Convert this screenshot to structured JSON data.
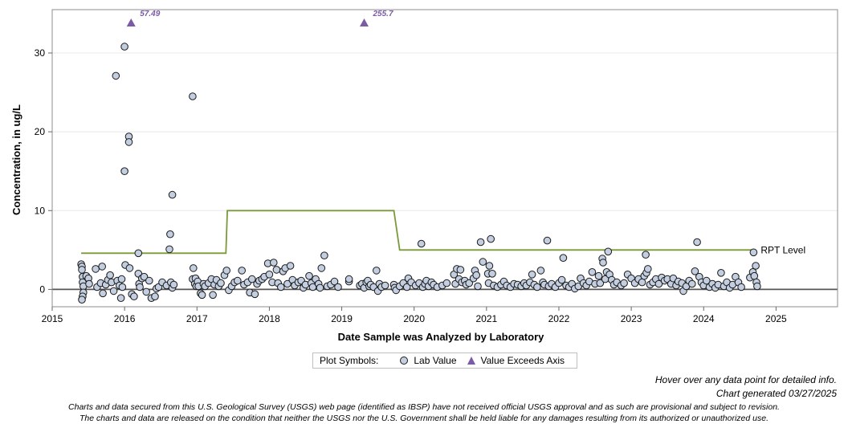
{
  "legend": {
    "title": "Plot Symbols:",
    "lab_value": "Lab Value",
    "exceeds": "Value Exceeds Axis"
  },
  "notes": {
    "hover": "Hover over any data point for detailed info.",
    "generated": "Chart generated 03/27/2025"
  },
  "disclaimer": {
    "line1": "Charts and data secured from this U.S. Geological Survey (USGS) web page (identified as IBSP) have not received official USGS approval and as such are provisional and subject to revision.",
    "line2": "The charts and data are released on the condition that neither the USGS nor the U.S. Government shall be held liable for any damages resulting from its authorized or unauthorized use."
  },
  "colors": {
    "marker_fill": "#c3cfe0",
    "marker_stroke": "#1a1a1a",
    "triangle": "#7b5aa6",
    "rpt_line": "#7a9a3a",
    "zero_line": "#555555",
    "grid": "#e8e8e8"
  },
  "chart_data": {
    "type": "scatter",
    "xlabel": "Date Sample was Analyzed by Laboratory",
    "ylabel": "Concentration, in ug/L",
    "xlim": [
      2015.0,
      2025.85
    ],
    "ylim": [
      -2.2,
      35.5
    ],
    "xticks": [
      "2015",
      "2016",
      "2017",
      "2018",
      "2019",
      "2020",
      "2021",
      "2022",
      "2023",
      "2024",
      "2025"
    ],
    "yticks": [
      "0",
      "10",
      "20",
      "30"
    ],
    "grid": "horizontal",
    "legend_position": "bottom",
    "rpt_label": "RPT Level",
    "rpt_level": [
      [
        2015.4,
        4.6
      ],
      [
        2017.4,
        4.6
      ],
      [
        2017.42,
        10.0
      ],
      [
        2019.72,
        10.0
      ],
      [
        2019.8,
        5.0
      ],
      [
        2024.7,
        5.0
      ]
    ],
    "exceeds_axis": [
      {
        "x": 2016.09,
        "value": "57.49"
      },
      {
        "x": 2019.31,
        "value": "255.7"
      }
    ],
    "lab_values": [
      [
        2015.4,
        3.2
      ],
      [
        2015.41,
        2.9
      ],
      [
        2015.41,
        2.5
      ],
      [
        2015.42,
        1.6
      ],
      [
        2015.42,
        0.9
      ],
      [
        2015.43,
        0.4
      ],
      [
        2015.43,
        -0.4
      ],
      [
        2015.42,
        -0.9
      ],
      [
        2015.41,
        -1.3
      ],
      [
        2015.47,
        1.7
      ],
      [
        2015.5,
        1.4
      ],
      [
        2015.51,
        0.7
      ],
      [
        2015.6,
        2.6
      ],
      [
        2015.62,
        0.3
      ],
      [
        2015.67,
        0.8
      ],
      [
        2015.69,
        2.9
      ],
      [
        2015.7,
        -0.5
      ],
      [
        2015.74,
        0.6
      ],
      [
        2015.77,
        1.2
      ],
      [
        2015.8,
        1.8
      ],
      [
        2015.82,
        0.9
      ],
      [
        2015.85,
        -0.2
      ],
      [
        2015.88,
        27.1
      ],
      [
        2015.9,
        1.1
      ],
      [
        2015.93,
        0.5
      ],
      [
        2015.96,
        1.3
      ],
      [
        2015.97,
        0.3
      ],
      [
        2015.95,
        -1.1
      ],
      [
        2016.0,
        30.8
      ],
      [
        2016.0,
        15.0
      ],
      [
        2016.01,
        3.1
      ],
      [
        2016.06,
        19.4
      ],
      [
        2016.06,
        18.7
      ],
      [
        2016.07,
        2.7
      ],
      [
        2016.1,
        -0.6
      ],
      [
        2016.13,
        -0.9
      ],
      [
        2016.19,
        4.6
      ],
      [
        2016.19,
        2.0
      ],
      [
        2016.2,
        0.7
      ],
      [
        2016.21,
        0.3
      ],
      [
        2016.24,
        1.4
      ],
      [
        2016.27,
        1.6
      ],
      [
        2016.3,
        -0.3
      ],
      [
        2016.34,
        1.1
      ],
      [
        2016.37,
        -1.1
      ],
      [
        2016.42,
        -0.9
      ],
      [
        2016.44,
        0.1
      ],
      [
        2016.47,
        0.3
      ],
      [
        2016.52,
        0.9
      ],
      [
        2016.58,
        0.5
      ],
      [
        2016.62,
        5.1
      ],
      [
        2016.63,
        7.0
      ],
      [
        2016.64,
        0.9
      ],
      [
        2016.66,
        12.0
      ],
      [
        2016.66,
        0.2
      ],
      [
        2016.68,
        0.6
      ],
      [
        2016.94,
        24.5
      ],
      [
        2016.94,
        1.3
      ],
      [
        2016.95,
        2.7
      ],
      [
        2016.97,
        0.7
      ],
      [
        2016.98,
        1.4
      ],
      [
        2016.99,
        0.4
      ],
      [
        2017.01,
        1.0
      ],
      [
        2017.02,
        0.4
      ],
      [
        2017.05,
        -0.5
      ],
      [
        2017.07,
        -0.7
      ],
      [
        2017.09,
        0.7
      ],
      [
        2017.11,
        0.4
      ],
      [
        2017.16,
        0.8
      ],
      [
        2017.2,
        1.3
      ],
      [
        2017.22,
        -0.7
      ],
      [
        2017.24,
        0.6
      ],
      [
        2017.27,
        1.2
      ],
      [
        2017.3,
        0.4
      ],
      [
        2017.33,
        0.8
      ],
      [
        2017.38,
        1.8
      ],
      [
        2017.41,
        2.4
      ],
      [
        2017.44,
        -0.1
      ],
      [
        2017.48,
        0.4
      ],
      [
        2017.52,
        0.9
      ],
      [
        2017.56,
        1.1
      ],
      [
        2017.62,
        2.4
      ],
      [
        2017.65,
        0.6
      ],
      [
        2017.7,
        0.9
      ],
      [
        2017.73,
        -0.4
      ],
      [
        2017.76,
        1.3
      ],
      [
        2017.8,
        -0.6
      ],
      [
        2017.83,
        0.7
      ],
      [
        2017.86,
        1.1
      ],
      [
        2017.9,
        1.3
      ],
      [
        2017.93,
        1.6
      ],
      [
        2017.98,
        3.3
      ],
      [
        2018.0,
        1.9
      ],
      [
        2018.04,
        0.9
      ],
      [
        2018.06,
        3.4
      ],
      [
        2018.1,
        2.5
      ],
      [
        2018.12,
        0.8
      ],
      [
        2018.16,
        0.3
      ],
      [
        2018.19,
        2.3
      ],
      [
        2018.22,
        2.7
      ],
      [
        2018.25,
        0.7
      ],
      [
        2018.29,
        3.0
      ],
      [
        2018.32,
        1.2
      ],
      [
        2018.35,
        0.5
      ],
      [
        2018.4,
        0.9
      ],
      [
        2018.44,
        1.1
      ],
      [
        2018.47,
        0.2
      ],
      [
        2018.5,
        0.6
      ],
      [
        2018.55,
        1.7
      ],
      [
        2018.58,
        0.8
      ],
      [
        2018.6,
        0.3
      ],
      [
        2018.64,
        1.3
      ],
      [
        2018.68,
        0.7
      ],
      [
        2018.7,
        0.2
      ],
      [
        2018.72,
        2.7
      ],
      [
        2018.76,
        4.3
      ],
      [
        2018.8,
        0.4
      ],
      [
        2018.85,
        0.6
      ],
      [
        2018.9,
        1.0
      ],
      [
        2018.95,
        0.3
      ],
      [
        2019.1,
        1.0
      ],
      [
        2019.1,
        1.3
      ],
      [
        2019.25,
        0.5
      ],
      [
        2019.28,
        0.7
      ],
      [
        2019.31,
        0.2
      ],
      [
        2019.34,
        0.9
      ],
      [
        2019.36,
        1.1
      ],
      [
        2019.38,
        0.4
      ],
      [
        2019.4,
        0.6
      ],
      [
        2019.44,
        0.3
      ],
      [
        2019.48,
        2.4
      ],
      [
        2019.5,
        -0.2
      ],
      [
        2019.52,
        0.7
      ],
      [
        2019.55,
        0.3
      ],
      [
        2019.6,
        0.5
      ],
      [
        2019.72,
        0.6
      ],
      [
        2019.73,
        0.2
      ],
      [
        2019.75,
        -0.1
      ],
      [
        2019.8,
        0.4
      ],
      [
        2019.85,
        0.8
      ],
      [
        2019.9,
        0.3
      ],
      [
        2019.92,
        1.4
      ],
      [
        2019.96,
        0.9
      ],
      [
        2020.02,
        0.5
      ],
      [
        2020.07,
        0.8
      ],
      [
        2020.1,
        5.8
      ],
      [
        2020.12,
        0.3
      ],
      [
        2020.15,
        0.7
      ],
      [
        2020.17,
        1.1
      ],
      [
        2020.2,
        0.4
      ],
      [
        2020.24,
        0.9
      ],
      [
        2020.27,
        0.6
      ],
      [
        2020.32,
        0.3
      ],
      [
        2020.39,
        0.5
      ],
      [
        2020.45,
        0.8
      ],
      [
        2020.55,
        1.9
      ],
      [
        2020.57,
        0.7
      ],
      [
        2020.59,
        2.6
      ],
      [
        2020.62,
        1.3
      ],
      [
        2020.64,
        2.5
      ],
      [
        2020.66,
        0.9
      ],
      [
        2020.7,
        1.1
      ],
      [
        2020.72,
        0.6
      ],
      [
        2020.76,
        0.8
      ],
      [
        2020.82,
        1.4
      ],
      [
        2020.84,
        2.4
      ],
      [
        2020.86,
        1.8
      ],
      [
        2020.88,
        0.4
      ],
      [
        2020.92,
        6.0
      ],
      [
        2020.95,
        3.5
      ],
      [
        2021.02,
        2.0
      ],
      [
        2021.03,
        0.8
      ],
      [
        2021.04,
        3.0
      ],
      [
        2021.06,
        6.4
      ],
      [
        2021.08,
        2.0
      ],
      [
        2021.1,
        0.5
      ],
      [
        2021.15,
        0.3
      ],
      [
        2021.2,
        0.6
      ],
      [
        2021.24,
        1.0
      ],
      [
        2021.28,
        0.5
      ],
      [
        2021.33,
        0.3
      ],
      [
        2021.38,
        0.7
      ],
      [
        2021.43,
        0.6
      ],
      [
        2021.48,
        0.4
      ],
      [
        2021.52,
        0.8
      ],
      [
        2021.55,
        0.5
      ],
      [
        2021.6,
        0.9
      ],
      [
        2021.63,
        1.9
      ],
      [
        2021.66,
        0.6
      ],
      [
        2021.7,
        0.3
      ],
      [
        2021.75,
        2.4
      ],
      [
        2021.78,
        0.9
      ],
      [
        2021.8,
        0.6
      ],
      [
        2021.84,
        6.2
      ],
      [
        2021.86,
        0.4
      ],
      [
        2021.9,
        0.7
      ],
      [
        2021.95,
        0.3
      ],
      [
        2022.0,
        0.8
      ],
      [
        2022.04,
        1.2
      ],
      [
        2022.06,
        4.0
      ],
      [
        2022.1,
        0.5
      ],
      [
        2022.14,
        0.3
      ],
      [
        2022.18,
        0.7
      ],
      [
        2022.22,
        0.1
      ],
      [
        2022.27,
        0.4
      ],
      [
        2022.3,
        1.4
      ],
      [
        2022.34,
        0.8
      ],
      [
        2022.38,
        0.5
      ],
      [
        2022.42,
        1.0
      ],
      [
        2022.46,
        2.2
      ],
      [
        2022.5,
        0.7
      ],
      [
        2022.55,
        1.7
      ],
      [
        2022.57,
        0.8
      ],
      [
        2022.6,
        3.9
      ],
      [
        2022.61,
        3.4
      ],
      [
        2022.64,
        1.3
      ],
      [
        2022.66,
        2.2
      ],
      [
        2022.68,
        4.8
      ],
      [
        2022.7,
        1.9
      ],
      [
        2022.73,
        1.2
      ],
      [
        2022.76,
        0.6
      ],
      [
        2022.8,
        0.9
      ],
      [
        2022.86,
        0.5
      ],
      [
        2022.9,
        0.8
      ],
      [
        2022.95,
        1.9
      ],
      [
        2023.0,
        1.4
      ],
      [
        2023.05,
        0.8
      ],
      [
        2023.1,
        1.3
      ],
      [
        2023.15,
        0.9
      ],
      [
        2023.18,
        1.7
      ],
      [
        2023.2,
        4.4
      ],
      [
        2023.21,
        2.1
      ],
      [
        2023.23,
        2.6
      ],
      [
        2023.26,
        0.6
      ],
      [
        2023.3,
        0.9
      ],
      [
        2023.34,
        1.3
      ],
      [
        2023.38,
        0.7
      ],
      [
        2023.42,
        1.5
      ],
      [
        2023.46,
        1.1
      ],
      [
        2023.5,
        1.3
      ],
      [
        2023.55,
        0.7
      ],
      [
        2023.58,
        1.4
      ],
      [
        2023.62,
        0.5
      ],
      [
        2023.65,
        1.0
      ],
      [
        2023.7,
        0.8
      ],
      [
        2023.72,
        -0.2
      ],
      [
        2023.76,
        0.4
      ],
      [
        2023.8,
        1.1
      ],
      [
        2023.84,
        0.7
      ],
      [
        2023.88,
        2.3
      ],
      [
        2023.91,
        6.0
      ],
      [
        2023.94,
        1.6
      ],
      [
        2023.97,
        0.9
      ],
      [
        2024.0,
        0.5
      ],
      [
        2024.04,
        1.1
      ],
      [
        2024.08,
        0.3
      ],
      [
        2024.12,
        0.7
      ],
      [
        2024.16,
        0.2
      ],
      [
        2024.2,
        0.6
      ],
      [
        2024.24,
        2.1
      ],
      [
        2024.28,
        0.4
      ],
      [
        2024.32,
        0.9
      ],
      [
        2024.36,
        0.2
      ],
      [
        2024.4,
        0.6
      ],
      [
        2024.44,
        1.6
      ],
      [
        2024.48,
        0.9
      ],
      [
        2024.52,
        0.3
      ],
      [
        2024.64,
        1.5
      ],
      [
        2024.68,
        2.2
      ],
      [
        2024.7,
        1.7
      ],
      [
        2024.69,
        4.7
      ],
      [
        2024.72,
        3.0
      ],
      [
        2024.73,
        0.9
      ],
      [
        2024.74,
        0.4
      ]
    ]
  }
}
